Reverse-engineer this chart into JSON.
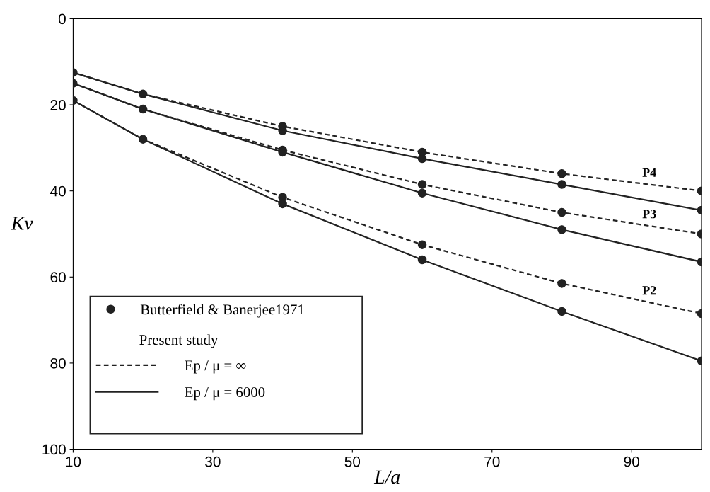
{
  "chart_data": {
    "type": "line",
    "xlabel": "L/a",
    "ylabel": "Kv",
    "xlim": [
      10,
      100
    ],
    "ylim": [
      100,
      0
    ],
    "xticks": [
      10,
      30,
      50,
      70,
      90
    ],
    "yticks": [
      0,
      20,
      40,
      60,
      80,
      100
    ],
    "grid": false,
    "legend": "bottom left",
    "series": [
      {
        "name": "Butterfield & Banerjee1971",
        "type": "scatter",
        "marker": "circle",
        "color": "#222222",
        "x": [
          10,
          20,
          40,
          60,
          80,
          100,
          10,
          20,
          40,
          60,
          80,
          100,
          10,
          20,
          40,
          60,
          80,
          100,
          40,
          60,
          80,
          100,
          40,
          60,
          80,
          100,
          40,
          60,
          80,
          100
        ],
        "values": [
          12.5,
          17.5,
          25,
          31,
          36,
          40,
          15,
          21,
          30.5,
          38.5,
          45,
          50,
          19,
          28,
          41.5,
          52.5,
          61.5,
          68.5,
          26,
          32.5,
          38.5,
          44.5,
          31,
          40.5,
          49,
          56.5,
          43,
          56,
          68,
          79.5
        ]
      },
      {
        "name": "Ep / μ = ∞",
        "line_style": "dashed",
        "marker": "none",
        "color": "#222222",
        "x": [
          10,
          20,
          40,
          60,
          80,
          100
        ],
        "values": [
          12.5,
          17.5,
          25,
          31,
          36,
          40
        ]
      },
      {
        "line_style": "dashed",
        "marker": "none",
        "color": "#222222",
        "x": [
          10,
          20,
          40,
          60,
          80,
          100
        ],
        "values": [
          15,
          21,
          30.5,
          38.5,
          45,
          50
        ]
      },
      {
        "line_style": "dashed",
        "marker": "none",
        "color": "#222222",
        "x": [
          10,
          20,
          40,
          60,
          80,
          100
        ],
        "values": [
          19,
          28,
          41.5,
          52.5,
          61.5,
          68.5
        ]
      },
      {
        "name": "Ep / μ = 6000",
        "line_style": "solid",
        "marker": "none",
        "color": "#222222",
        "x": [
          10,
          20,
          40,
          60,
          80,
          100
        ],
        "values": [
          12.5,
          17.5,
          26,
          32.5,
          38.5,
          44.5
        ]
      },
      {
        "line_style": "solid",
        "marker": "none",
        "color": "#222222",
        "x": [
          10,
          20,
          40,
          60,
          80,
          100
        ],
        "values": [
          15,
          21,
          31,
          40.5,
          49,
          56.5
        ]
      },
      {
        "line_style": "solid",
        "marker": "none",
        "color": "#222222",
        "x": [
          10,
          20,
          40,
          60,
          80,
          100
        ],
        "values": [
          19,
          28,
          43,
          56,
          68,
          79.5
        ]
      }
    ],
    "annotations": [
      "Present study",
      "P4",
      "P3",
      "P2"
    ]
  }
}
